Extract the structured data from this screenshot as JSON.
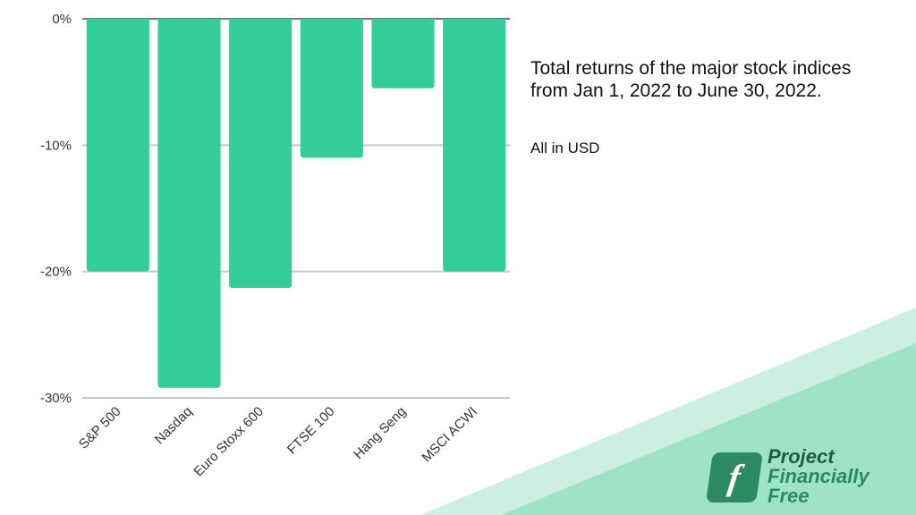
{
  "chart_data": {
    "type": "bar",
    "categories": [
      "S&P 500",
      "Nasdaq",
      "Euro Stoxx 600",
      "FTSE 100",
      "Hang Seng",
      "MSCI ACWI"
    ],
    "values": [
      -20.0,
      -29.2,
      -21.3,
      -11.0,
      -5.5,
      -20.0
    ],
    "ylim": [
      -30,
      0
    ],
    "yticks": [
      0,
      -10,
      -20,
      -30
    ],
    "ytick_labels": [
      "0%",
      "-10%",
      "-20%",
      "-30%"
    ],
    "grid": true,
    "bar_color": "#34cc97",
    "title": "Total returns of the major stock indices from Jan 1, 2022 to June 30, 2022.",
    "subtitle": "All in USD",
    "xlabel": "",
    "ylabel": ""
  },
  "caption": {
    "line1": "Total returns of the major stock indices",
    "line2": "from Jan 1, 2022 to June 30, 2022.",
    "note": "All in USD"
  },
  "logo": {
    "mark": "f",
    "line1": "Project",
    "line2": "Financially",
    "line3": "Free"
  },
  "colors": {
    "bar": "#34cc97",
    "decor_light": "#cdefe1",
    "decor_mid": "#9fe3c6",
    "brand": "#2b8a62"
  }
}
